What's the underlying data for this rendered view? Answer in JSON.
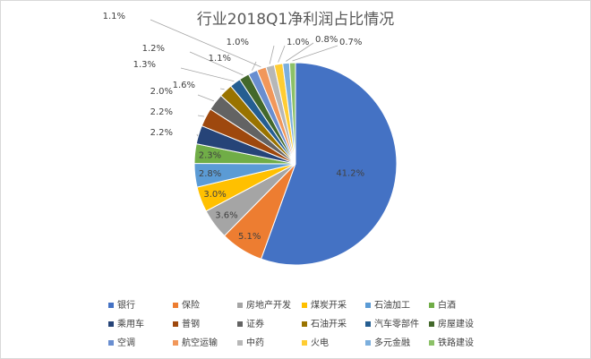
{
  "chart_data": {
    "type": "pie",
    "title": "行业2018Q1净利润占比情况",
    "categories": [
      "银行",
      "保险",
      "房地产开发",
      "煤炭开采",
      "石油加工",
      "白酒",
      "乘用车",
      "普钢",
      "证券",
      "石油开采",
      "汽车零部件",
      "房屋建设",
      "空调",
      "航空运输",
      "中药",
      "火电",
      "多元金融",
      "铁路建设"
    ],
    "values": [
      41.2,
      5.1,
      3.6,
      3.0,
      2.8,
      2.3,
      2.2,
      2.2,
      2.0,
      1.6,
      1.3,
      1.2,
      1.1,
      1.1,
      1.0,
      1.0,
      0.8,
      0.7
    ],
    "value_labels": [
      "41.2%",
      "5.1%",
      "3.6%",
      "3.0%",
      "2.8%",
      "2.3%",
      "2.2%",
      "2.2%",
      "2.0%",
      "1.6%",
      "1.3%",
      "1.2%",
      "1.1%",
      "1.1%",
      "1.0%",
      "1.0%",
      "0.8%",
      "0.7%"
    ],
    "colors": [
      "#4472c4",
      "#ed7d31",
      "#a5a5a5",
      "#ffc000",
      "#5b9bd5",
      "#70ad47",
      "#264478",
      "#9e480e",
      "#636363",
      "#997300",
      "#255e91",
      "#43682b",
      "#698ed0",
      "#f1975a",
      "#b7b7b7",
      "#ffcd33",
      "#7cafdd",
      "#8cc168"
    ],
    "legend": "bottom"
  }
}
